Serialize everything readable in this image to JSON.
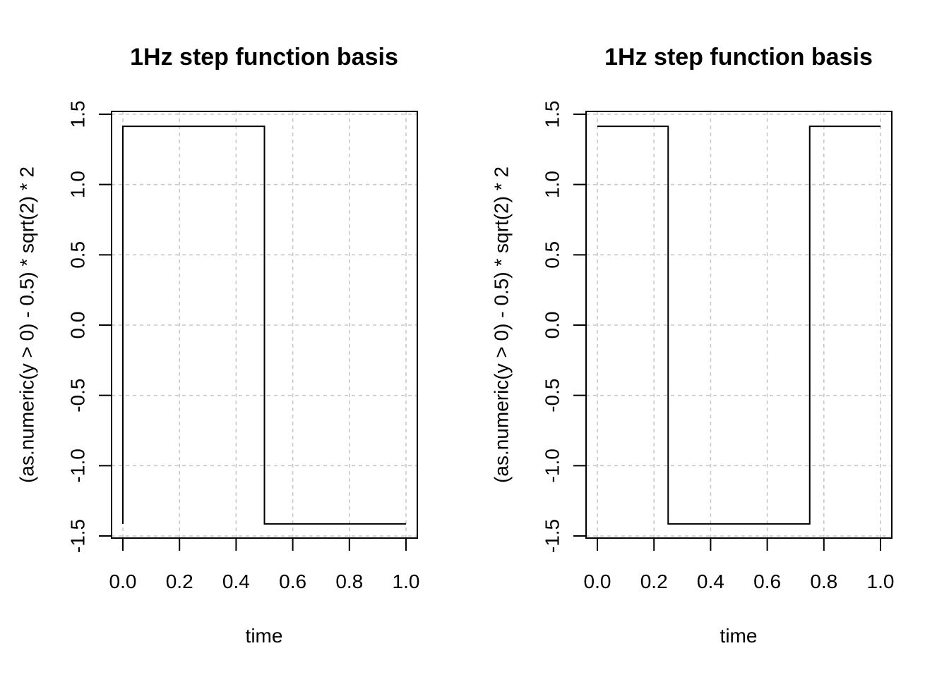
{
  "chart_data": [
    {
      "type": "line",
      "title": "1Hz step function basis",
      "xlabel": "time",
      "ylabel": "(as.numeric(y > 0) - 0.5) * sqrt(2) * 2",
      "xlim": [
        0,
        1
      ],
      "ylim": [
        -1.5,
        1.5
      ],
      "x_ticks": [
        0.0,
        0.2,
        0.4,
        0.6,
        0.8,
        1.0
      ],
      "x_tick_labels": [
        "0.0",
        "0.2",
        "0.4",
        "0.6",
        "0.8",
        "1.0"
      ],
      "y_ticks": [
        -1.5,
        -1.0,
        -0.5,
        0.0,
        0.5,
        1.0,
        1.5
      ],
      "y_tick_labels": [
        "-1.5",
        "-1.0",
        "-0.5",
        "0.0",
        "0.5",
        "1.0",
        "1.5"
      ],
      "grid": true,
      "series": [
        {
          "x": [
            0.0,
            0.0,
            0.5,
            0.5,
            1.0
          ],
          "y": [
            -1.414,
            1.414,
            1.414,
            -1.414,
            -1.414
          ]
        }
      ]
    },
    {
      "type": "line",
      "title": "1Hz step function basis",
      "xlabel": "time",
      "ylabel": "(as.numeric(y > 0) - 0.5) * sqrt(2) * 2",
      "xlim": [
        0,
        1
      ],
      "ylim": [
        -1.5,
        1.5
      ],
      "x_ticks": [
        0.0,
        0.2,
        0.4,
        0.6,
        0.8,
        1.0
      ],
      "x_tick_labels": [
        "0.0",
        "0.2",
        "0.4",
        "0.6",
        "0.8",
        "1.0"
      ],
      "y_ticks": [
        -1.5,
        -1.0,
        -0.5,
        0.0,
        0.5,
        1.0,
        1.5
      ],
      "y_tick_labels": [
        "-1.5",
        "-1.0",
        "-0.5",
        "0.0",
        "0.5",
        "1.0",
        "1.5"
      ],
      "grid": true,
      "series": [
        {
          "x": [
            0.0,
            0.25,
            0.25,
            0.75,
            0.75,
            1.0
          ],
          "y": [
            1.414,
            1.414,
            -1.414,
            -1.414,
            1.414,
            1.414
          ]
        }
      ]
    }
  ]
}
